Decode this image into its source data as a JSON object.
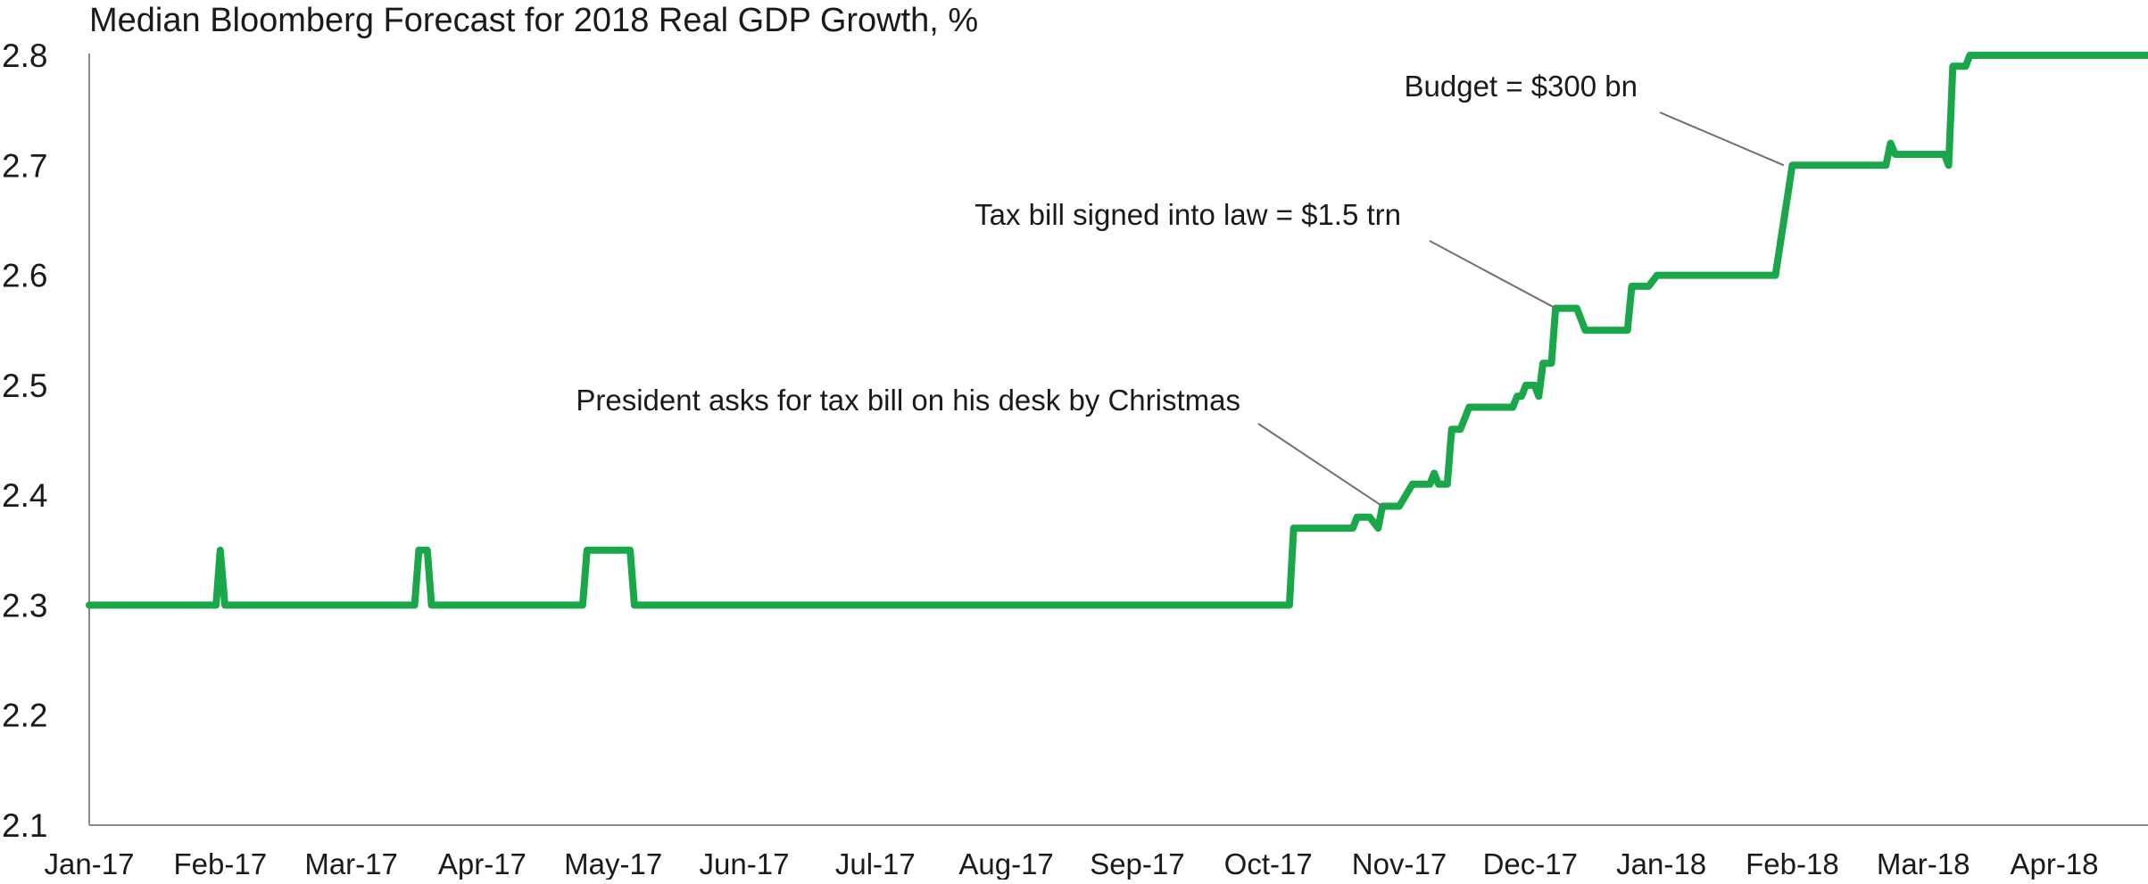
{
  "chart_data": {
    "type": "line",
    "title": "Median Bloomberg Forecast for 2018 Real GDP Growth, %",
    "xlabel": "",
    "ylabel": "",
    "ylim": [
      2.1,
      2.8
    ],
    "y_ticks": [
      2.1,
      2.2,
      2.3,
      2.4,
      2.5,
      2.6,
      2.7,
      2.8
    ],
    "y_tick_labels": [
      "2.1",
      "2.2",
      "2.3",
      "2.4",
      "2.5",
      "2.6",
      "2.7",
      "2.8"
    ],
    "x_tick_labels": [
      "Jan-17",
      "Feb-17",
      "Mar-17",
      "Apr-17",
      "May-17",
      "Jun-17",
      "Jul-17",
      "Aug-17",
      "Sep-17",
      "Oct-17",
      "Nov-17",
      "Dec-17",
      "Jan-18",
      "Feb-18",
      "Mar-18",
      "Apr-18"
    ],
    "x_ticks": [
      "2017-01-01",
      "2017-02-01",
      "2017-03-01",
      "2017-04-01",
      "2017-05-01",
      "2017-06-01",
      "2017-07-01",
      "2017-08-01",
      "2017-09-01",
      "2017-10-01",
      "2017-11-01",
      "2017-12-01",
      "2018-01-01",
      "2018-02-01",
      "2018-03-01",
      "2018-04-01"
    ],
    "xlim": [
      "2017-01-01",
      "2018-05-01"
    ],
    "grid": false,
    "legend": "none",
    "series": [
      {
        "color": "#19a74a",
        "points": [
          [
            "2017-01-01",
            2.3
          ],
          [
            "2017-01-31",
            2.3
          ],
          [
            "2017-02-01",
            2.35
          ],
          [
            "2017-02-02",
            2.3
          ],
          [
            "2017-03-16",
            2.3
          ],
          [
            "2017-03-17",
            2.35
          ],
          [
            "2017-03-19",
            2.35
          ],
          [
            "2017-03-20",
            2.3
          ],
          [
            "2017-04-24",
            2.3
          ],
          [
            "2017-04-25",
            2.35
          ],
          [
            "2017-05-05",
            2.35
          ],
          [
            "2017-05-06",
            2.3
          ],
          [
            "2017-10-06",
            2.3
          ],
          [
            "2017-10-07",
            2.37
          ],
          [
            "2017-10-21",
            2.37
          ],
          [
            "2017-10-22",
            2.38
          ],
          [
            "2017-10-25",
            2.38
          ],
          [
            "2017-10-27",
            2.37
          ],
          [
            "2017-10-28",
            2.39
          ],
          [
            "2017-11-01",
            2.39
          ],
          [
            "2017-11-04",
            2.41
          ],
          [
            "2017-11-08",
            2.41
          ],
          [
            "2017-11-09",
            2.42
          ],
          [
            "2017-11-10",
            2.41
          ],
          [
            "2017-11-12",
            2.41
          ],
          [
            "2017-11-13",
            2.46
          ],
          [
            "2017-11-15",
            2.46
          ],
          [
            "2017-11-17",
            2.48
          ],
          [
            "2017-11-27",
            2.48
          ],
          [
            "2017-11-28",
            2.49
          ],
          [
            "2017-11-29",
            2.49
          ],
          [
            "2017-11-30",
            2.5
          ],
          [
            "2017-12-02",
            2.5
          ],
          [
            "2017-12-03",
            2.49
          ],
          [
            "2017-12-04",
            2.52
          ],
          [
            "2017-12-06",
            2.52
          ],
          [
            "2017-12-07",
            2.57
          ],
          [
            "2017-12-12",
            2.57
          ],
          [
            "2017-12-14",
            2.55
          ],
          [
            "2017-12-24",
            2.55
          ],
          [
            "2017-12-25",
            2.59
          ],
          [
            "2017-12-29",
            2.59
          ],
          [
            "2017-12-31",
            2.6
          ],
          [
            "2018-01-28",
            2.6
          ],
          [
            "2018-02-01",
            2.7
          ],
          [
            "2018-02-21",
            2.7
          ],
          [
            "2018-02-22",
            2.72
          ],
          [
            "2018-02-23",
            2.71
          ],
          [
            "2018-03-06",
            2.71
          ],
          [
            "2018-03-07",
            2.7
          ],
          [
            "2018-03-08",
            2.79
          ],
          [
            "2018-03-11",
            2.79
          ],
          [
            "2018-03-12",
            2.8
          ],
          [
            "2018-04-30",
            2.8
          ]
        ]
      }
    ],
    "annotations": [
      {
        "text": "President asks for tax bill on his desk by Christmas",
        "points_to": [
          "2017-10-28",
          2.39
        ]
      },
      {
        "text": "Tax bill signed into law = $1.5 trn",
        "points_to": [
          "2017-12-07",
          2.57
        ]
      },
      {
        "text": "Budget = $300 bn",
        "points_to": [
          "2018-01-30",
          2.7
        ]
      }
    ]
  }
}
